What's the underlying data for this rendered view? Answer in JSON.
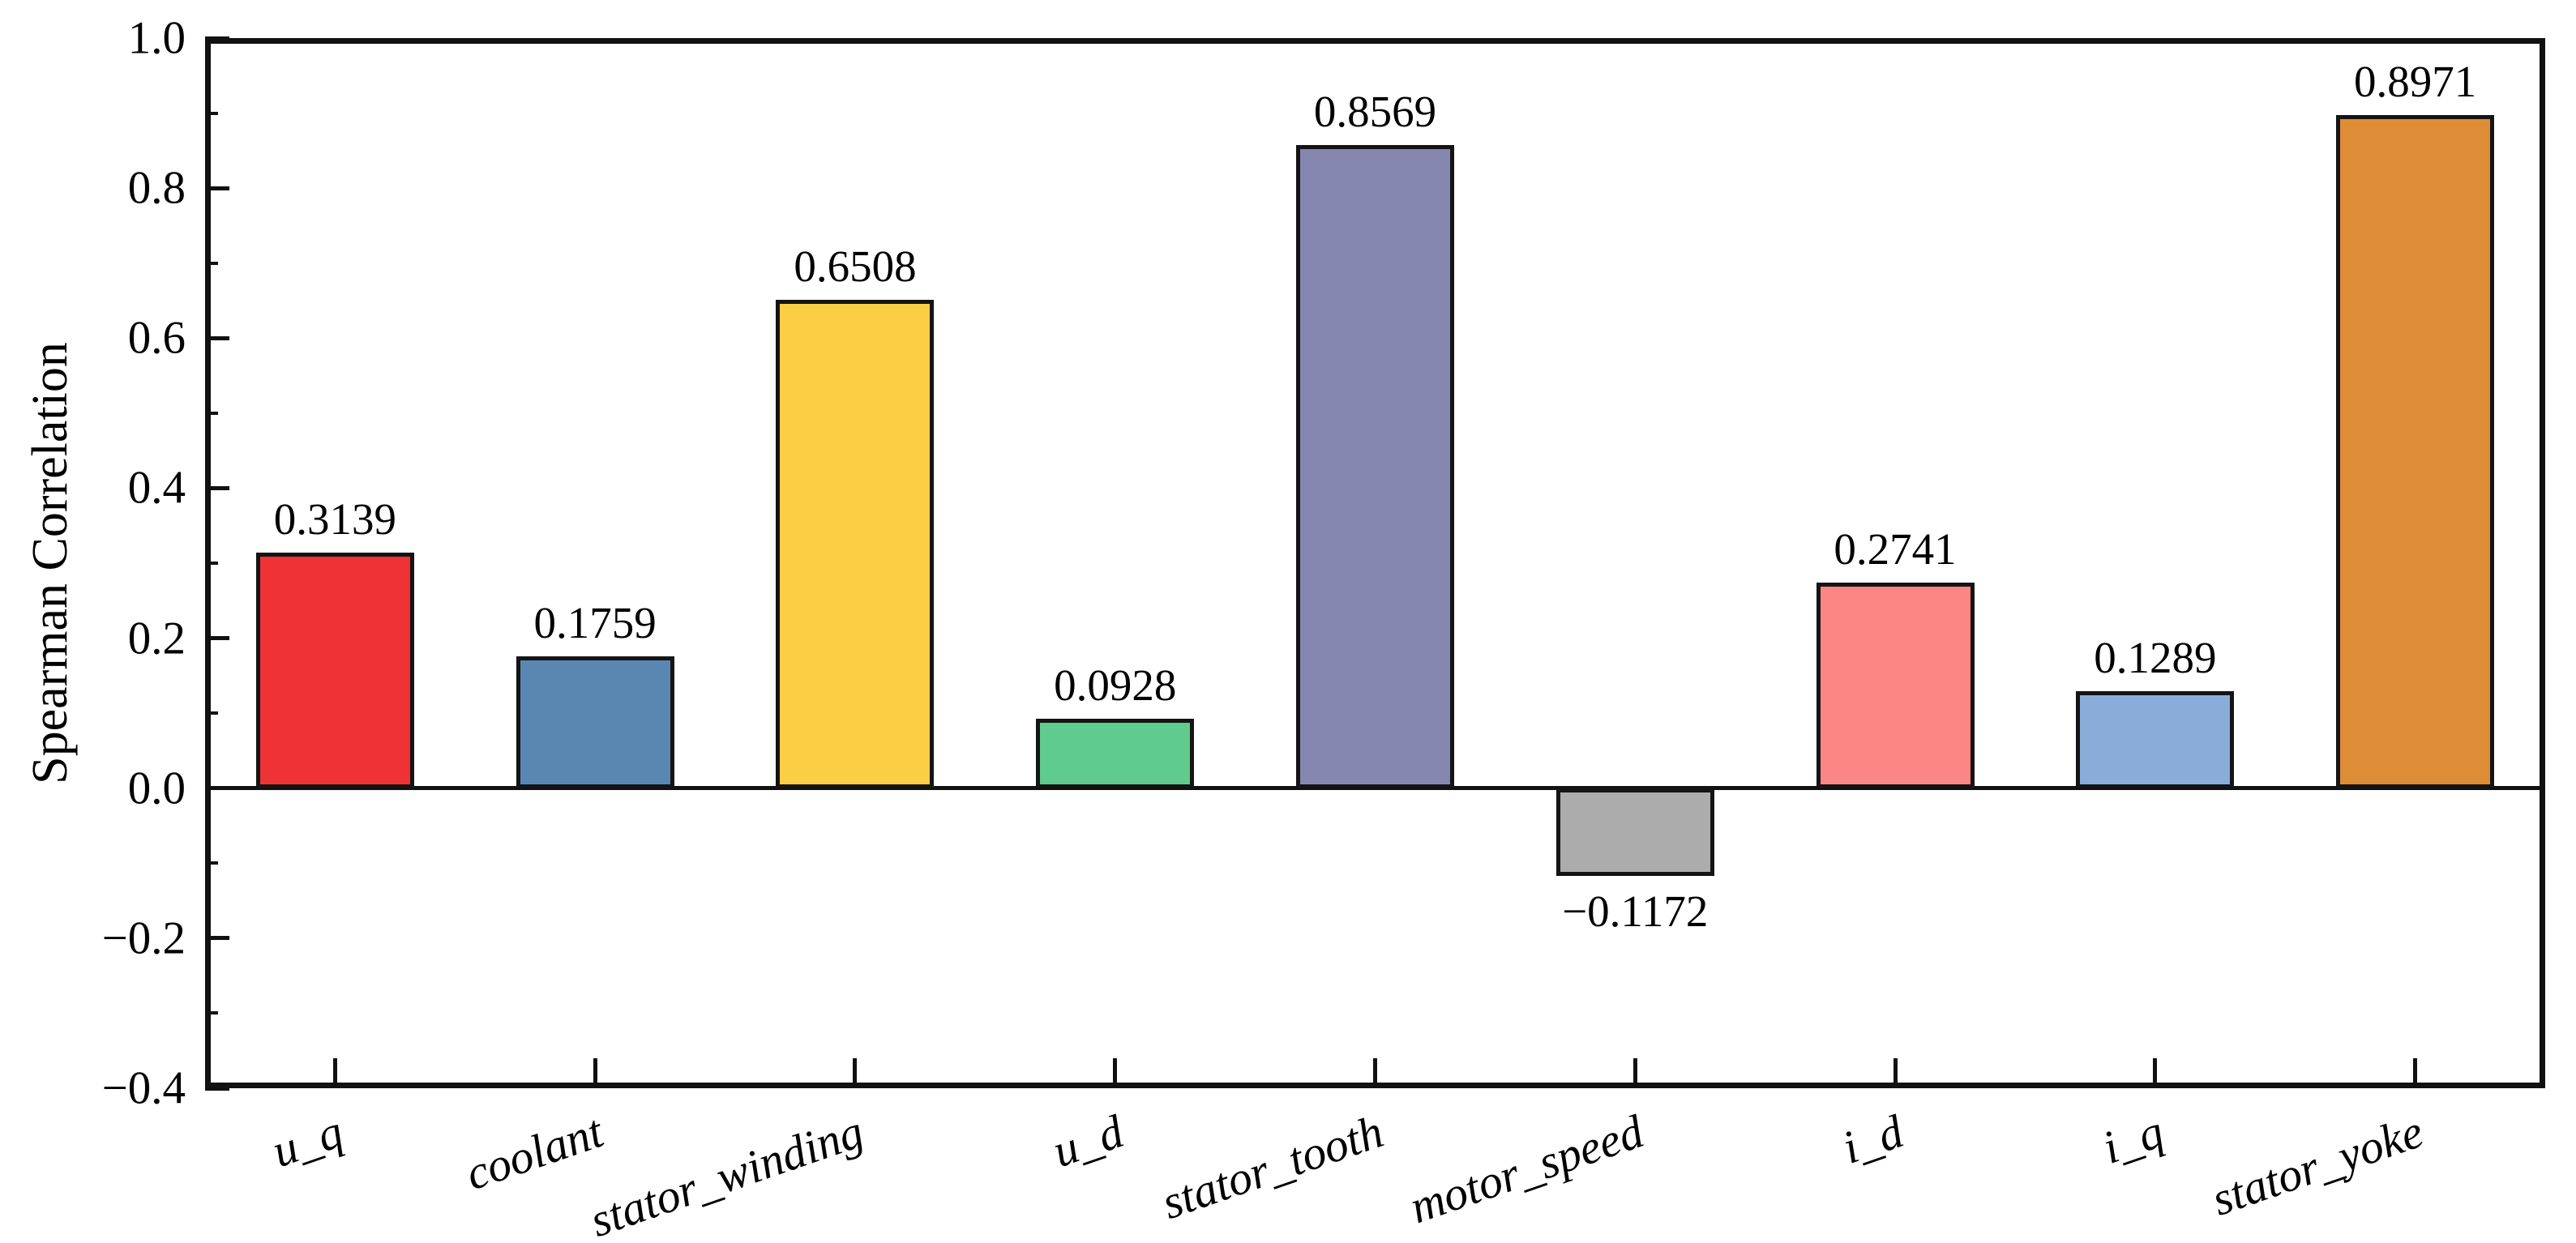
{
  "chart_data": {
    "type": "bar",
    "title": "",
    "xlabel": "",
    "ylabel": "Spearman Correlation",
    "categories": [
      "u_q",
      "coolant",
      "stator_winding",
      "u_d",
      "stator_tooth",
      "motor_speed",
      "i_d",
      "i_q",
      "stator_yoke"
    ],
    "values": [
      0.3139,
      0.1759,
      0.6508,
      0.0928,
      0.8569,
      -0.1172,
      0.2741,
      0.1289,
      0.8971
    ],
    "value_labels": [
      "0.3139",
      "0.1759",
      "0.6508",
      "0.0928",
      "0.8569",
      "−0.1172",
      "0.2741",
      "0.1289",
      "0.8971"
    ],
    "bar_colors": [
      "#EF3235",
      "#5A87B2",
      "#FCCE44",
      "#5FCB8C",
      "#8687B0",
      "#ACACAC",
      "#FB8685",
      "#89ADD8",
      "#DE8C35"
    ],
    "bar_edge_color": "#141414",
    "axis_color": "#111111",
    "ylim": [
      -0.4,
      1.0
    ],
    "ytick_step": 0.2,
    "yminor_step": 0.1,
    "ytick_labels": [
      "1.0",
      "0.8",
      "0.6",
      "0.4",
      "0.2",
      "0.0",
      "−0.2",
      "−0.4"
    ],
    "grid": false,
    "legend": null,
    "zero_baseline": true,
    "xtick_rotation_deg": 19
  }
}
